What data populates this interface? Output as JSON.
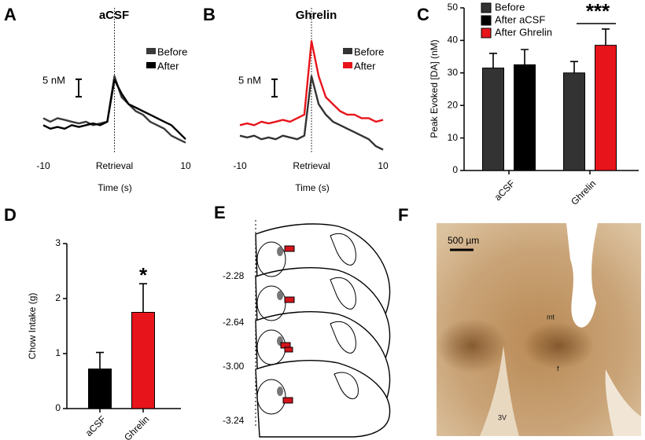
{
  "chart_data": [
    {
      "type": "line",
      "panel": "A",
      "title": "aCSF",
      "xlabel": "Time (s)",
      "x": [
        -10,
        -9,
        -8,
        -7,
        -6,
        -5,
        -4,
        -3,
        -2,
        -1,
        0,
        1,
        2,
        3,
        4,
        5,
        6,
        7,
        8,
        9,
        10
      ],
      "series": [
        {
          "name": "Before",
          "color": "#3a3a3a",
          "values": [
            2,
            1,
            2,
            1.5,
            1,
            0.5,
            1,
            0,
            0.5,
            1,
            14,
            8,
            6,
            4,
            3,
            1,
            0,
            -1,
            -3,
            -4,
            -5
          ]
        },
        {
          "name": "After",
          "color": "#000000",
          "values": [
            0,
            -1,
            -0.5,
            -1,
            0,
            -0.5,
            0,
            0.5,
            0,
            1,
            13,
            9,
            6,
            5,
            4,
            3,
            2,
            1,
            0,
            -2,
            -4
          ]
        }
      ],
      "xlim": [
        -10,
        10
      ],
      "xticks": [
        -10,
        {
          "value": 0,
          "label": "Retrieval"
        },
        10
      ],
      "ylim": [
        -8,
        29
      ],
      "scale_bar": {
        "value": 5,
        "label": "5 nM"
      }
    },
    {
      "type": "line",
      "panel": "B",
      "title": "Ghrelin",
      "xlabel": "Time (s)",
      "x": [
        -10,
        -9,
        -8,
        -7,
        -6,
        -5,
        -4,
        -3,
        -2,
        -1,
        0,
        1,
        2,
        3,
        4,
        5,
        6,
        7,
        8,
        9,
        10
      ],
      "series": [
        {
          "name": "Before",
          "color": "#333333",
          "values": [
            -3,
            -3.5,
            -3,
            -4,
            -3.5,
            -4,
            -3,
            -3.5,
            -4,
            -3,
            14,
            6,
            3,
            1,
            0,
            -1,
            -2,
            -3,
            -4,
            -6,
            -7
          ]
        },
        {
          "name": "After",
          "color": "#e8141b",
          "values": [
            0,
            0.5,
            0,
            1,
            0.5,
            1,
            1.5,
            1,
            2,
            3,
            24,
            14,
            8,
            6,
            4,
            3,
            3,
            2,
            2,
            1,
            1.5
          ]
        }
      ],
      "xlim": [
        -10,
        10
      ],
      "xticks": [
        -10,
        {
          "value": 0,
          "label": "Retrieval"
        },
        10
      ],
      "ylim": [
        -8,
        29
      ],
      "scale_bar": {
        "value": 5,
        "label": "5 nM"
      }
    },
    {
      "type": "bar",
      "panel": "C",
      "ylabel": "Peak Evoked [DA] (nM)",
      "categories": [
        "aCSF",
        "Ghrelin"
      ],
      "series": [
        {
          "name": "Before",
          "color": "#333333",
          "values": [
            31.5,
            30
          ],
          "errors": [
            4.5,
            3.5
          ]
        },
        {
          "name": "After aCSF",
          "color": "#000000",
          "values": [
            32.5,
            null
          ],
          "errors": [
            4.7,
            null
          ]
        },
        {
          "name": "After Ghrelin",
          "color": "#e8141b",
          "values": [
            null,
            38.5
          ],
          "errors": [
            null,
            5
          ]
        }
      ],
      "ylim": [
        0,
        50
      ],
      "yticks": [
        0,
        10,
        20,
        30,
        40,
        50
      ],
      "annotation": "***"
    },
    {
      "type": "bar",
      "panel": "D",
      "ylabel": "Chow Intake (g)",
      "categories": [
        "aCSF",
        "Ghrelin"
      ],
      "series": [
        {
          "colors": [
            "#000000",
            "#e8141b"
          ],
          "values": [
            0.72,
            1.75
          ],
          "errors": [
            0.3,
            0.52
          ]
        }
      ],
      "ylim": [
        0,
        3
      ],
      "yticks": [
        0,
        1,
        2,
        3
      ],
      "annotation": "*"
    }
  ],
  "panel_e": {
    "letter": "E",
    "levels": [
      "-2.28",
      "-2.64",
      "-3.00",
      "-3.24"
    ]
  },
  "panel_f": {
    "letter": "F",
    "scale": "500 µm",
    "labels": [
      "mt",
      "f",
      "3V"
    ]
  }
}
